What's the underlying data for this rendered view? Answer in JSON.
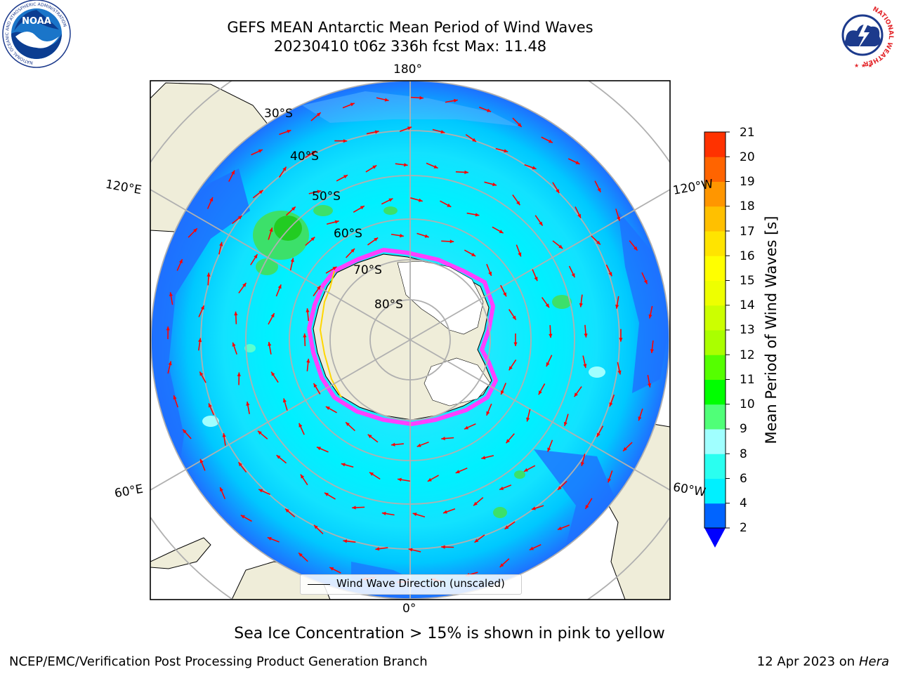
{
  "header": {
    "title_line1": "GEFS MEAN Antarctic Mean Period of Wind Waves",
    "title_line2": "20230410 t06z 336h fcst   Max: 11.48"
  },
  "logos": {
    "left": "noaa-logo",
    "left_text": "NOAA",
    "left_ring_text": "NATIONAL OCEANIC AND ATMOSPHERIC ADMINISTRATION",
    "left_ring_text_bottom": "U.S. DEPARTMENT OF COMMERCE",
    "right": "nws-logo",
    "right_ring_text": "NATIONAL WEATHER SERVICE"
  },
  "map": {
    "projection": "south-polar-stereographic",
    "longitude_labels": {
      "top": "180°",
      "bottom": "0°",
      "left_upper": "120°E",
      "left_lower": "60°E",
      "right_upper": "120°W",
      "right_lower": "60°W"
    },
    "latitude_labels": [
      "30°S",
      "40°S",
      "50°S",
      "60°S",
      "70°S",
      "80°S"
    ],
    "legend": "Wind Wave Direction (unscaled)",
    "colors": {
      "land": "#efedd9",
      "ice_shelf": "#ffffff",
      "ocean_low": "#0064ff",
      "ocean_mid": "#00f0ff",
      "ocean_high": "#5affd0",
      "ice_edge": "#ff40ff",
      "ice_edge_inner": "#ffd700",
      "arrow": "#ff0000",
      "graticule": "#b0b0b0"
    }
  },
  "colorbar": {
    "title": "Mean Period of Wind Waves [s]",
    "ticks": [
      "2",
      "4",
      "6",
      "8",
      "9",
      "10",
      "11",
      "12",
      "13",
      "14",
      "15",
      "16",
      "17",
      "18",
      "19",
      "20",
      "21"
    ],
    "colors": [
      "#0064ff",
      "#00f0ff",
      "#2afff0",
      "#a0ffff",
      "#50ff78",
      "#00ff00",
      "#55ff00",
      "#aaff00",
      "#ccff00",
      "#eeff00",
      "#ffff00",
      "#ffe400",
      "#ffc000",
      "#ff9600",
      "#ff6400",
      "#ff3200",
      "#ff0000"
    ],
    "extend_color": "#0000ff"
  },
  "caption": "Sea Ice Concentration > 15% is shown in pink to yellow",
  "footer": {
    "left": "NCEP/EMC/Verification Post Processing Product Generation Branch",
    "date": "12 Apr 2023 on ",
    "host": "Hera"
  }
}
